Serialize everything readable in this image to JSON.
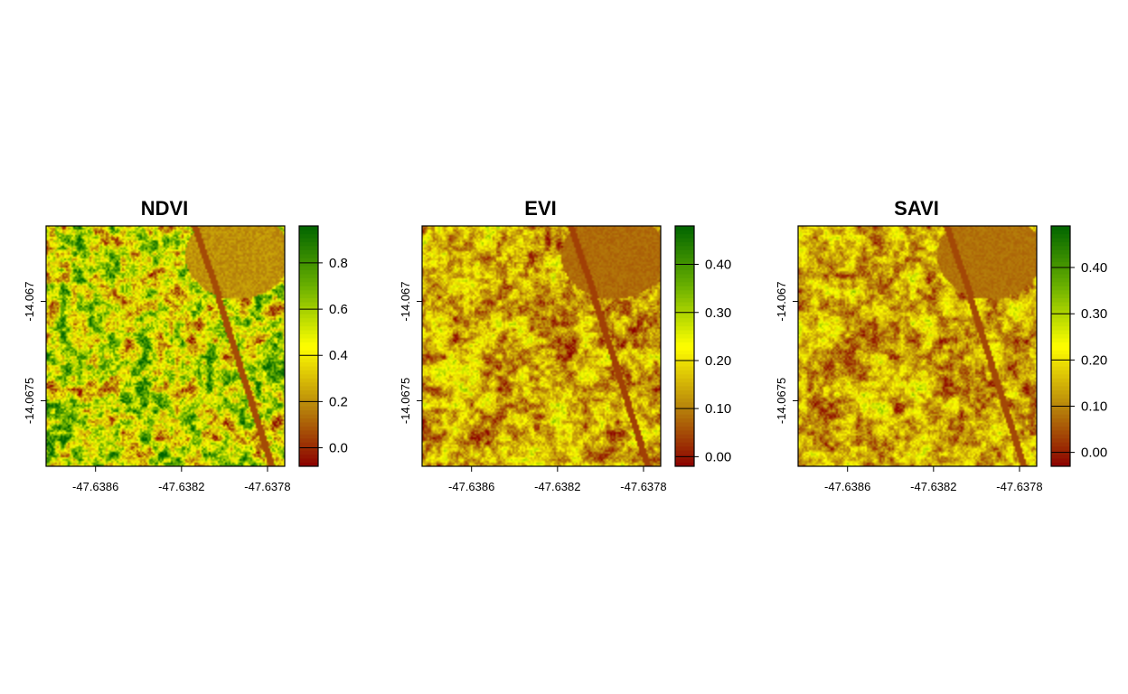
{
  "chart_data": [
    {
      "type": "heatmap",
      "title": "NDVI",
      "x_ticks": [
        -47.6386,
        -47.6382,
        -47.6378
      ],
      "x_tick_labels": [
        "-47.6386",
        "-47.6382",
        "-47.6378"
      ],
      "y_ticks": [
        -14.067,
        -14.0675
      ],
      "y_tick_labels": [
        "-14.067",
        "-14.0675"
      ],
      "xlim": [
        -47.63883,
        -47.63772
      ],
      "ylim": [
        -14.06783,
        -14.06662
      ],
      "legend": {
        "placement": "right",
        "range": [
          -0.08,
          0.96
        ],
        "ticks": [
          0.0,
          0.2,
          0.4,
          0.6,
          0.8
        ],
        "tick_labels": [
          "0.0",
          "0.2",
          "0.4",
          "0.6",
          "0.8"
        ]
      },
      "palette": [
        "#8b0000",
        "#b8860b",
        "#ffff00",
        "#6ab000",
        "#006400"
      ],
      "value_range_shown": [
        0.1,
        0.8
      ],
      "dominant_value": 0.5
    },
    {
      "type": "heatmap",
      "title": "EVI",
      "x_ticks": [
        -47.6386,
        -47.6382,
        -47.6378
      ],
      "x_tick_labels": [
        "-47.6386",
        "-47.6382",
        "-47.6378"
      ],
      "y_ticks": [
        -14.067,
        -14.0675
      ],
      "y_tick_labels": [
        "-14.067",
        "-14.0675"
      ],
      "xlim": [
        -47.63883,
        -47.63772
      ],
      "ylim": [
        -14.06783,
        -14.06662
      ],
      "legend": {
        "placement": "right",
        "range": [
          -0.02,
          0.48
        ],
        "ticks": [
          0.0,
          0.1,
          0.2,
          0.3,
          0.4
        ],
        "tick_labels": [
          "0.00",
          "0.10",
          "0.20",
          "0.30",
          "0.40"
        ]
      },
      "palette": [
        "#8b0000",
        "#b8860b",
        "#ffff00",
        "#6ab000",
        "#006400"
      ],
      "value_range_shown": [
        0.05,
        0.25
      ],
      "dominant_value": 0.14
    },
    {
      "type": "heatmap",
      "title": "SAVI",
      "x_ticks": [
        -47.6386,
        -47.6382,
        -47.6378
      ],
      "x_tick_labels": [
        "-47.6386",
        "-47.6382",
        "-47.6378"
      ],
      "y_ticks": [
        -14.067,
        -14.0675
      ],
      "y_tick_labels": [
        "-14.067",
        "-14.0675"
      ],
      "xlim": [
        -47.63883,
        -47.63772
      ],
      "ylim": [
        -14.06783,
        -14.06662
      ],
      "legend": {
        "placement": "right",
        "range": [
          -0.03,
          0.49
        ],
        "ticks": [
          0.0,
          0.1,
          0.2,
          0.3,
          0.4
        ],
        "tick_labels": [
          "0.00",
          "0.10",
          "0.20",
          "0.30",
          "0.40"
        ]
      },
      "palette": [
        "#8b0000",
        "#b8860b",
        "#ffff00",
        "#6ab000",
        "#006400"
      ],
      "value_range_shown": [
        0.05,
        0.25
      ],
      "dominant_value": 0.14
    }
  ]
}
